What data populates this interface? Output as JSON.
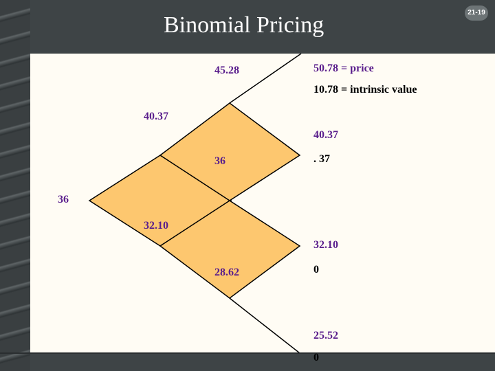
{
  "slide": {
    "title": "Binomial Pricing",
    "slide_number": "21-19"
  },
  "tree": {
    "labels": {
      "n45_28": "45.28",
      "n50_78": "50.78 = price",
      "n10_78": "10.78 = intrinsic value",
      "n40_37_left": "40.37",
      "n40_37_right": "40.37",
      "n36_mid": "36",
      "n_37": ". 37",
      "n36_left": "36",
      "n32_10_left": "32.10",
      "n32_10_right": "32.10",
      "n28_62": "28.62",
      "n0_a": "0",
      "n25_52": "25.52",
      "n0_b": "0"
    }
  },
  "colors": {
    "diamond_fill": "#fdc76f",
    "line": "#000000",
    "price_text": "#5a1e8c",
    "value_text": "#000000",
    "background": "#fffcf4",
    "frame": "#3e4446"
  }
}
